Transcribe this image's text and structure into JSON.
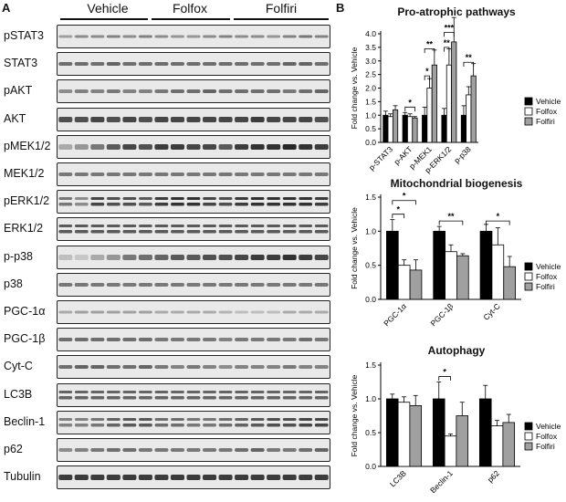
{
  "panels": {
    "a": "A",
    "b": "B"
  },
  "groups": [
    "Vehicle",
    "Folfox",
    "Folfiri"
  ],
  "blots": [
    {
      "label": "pSTAT3",
      "pattern": "weak",
      "intensity": [
        0.35,
        0.45,
        0.45,
        0.5,
        0.45,
        0.5,
        0.45,
        0.4,
        0.4,
        0.45,
        0.5,
        0.45,
        0.45,
        0.4,
        0.5,
        0.55,
        0.5
      ]
    },
    {
      "label": "STAT3",
      "pattern": "medium",
      "intensity": [
        0.6,
        0.6,
        0.6,
        0.65,
        0.6,
        0.6,
        0.6,
        0.6,
        0.6,
        0.6,
        0.6,
        0.6,
        0.6,
        0.6,
        0.65,
        0.65,
        0.6
      ]
    },
    {
      "label": "pAKT",
      "pattern": "medium",
      "intensity": [
        0.45,
        0.5,
        0.5,
        0.55,
        0.5,
        0.5,
        0.55,
        0.6,
        0.6,
        0.65,
        0.6,
        0.6,
        0.6,
        0.6,
        0.55,
        0.6,
        0.65
      ]
    },
    {
      "label": "AKT",
      "pattern": "strong",
      "intensity": [
        0.75,
        0.75,
        0.8,
        0.75,
        0.8,
        0.75,
        0.8,
        0.8,
        0.8,
        0.8,
        0.8,
        0.8,
        0.85,
        0.8,
        0.8,
        0.8,
        0.75
      ]
    },
    {
      "label": "pMEK1/2",
      "pattern": "strong",
      "intensity": [
        0.3,
        0.4,
        0.55,
        0.7,
        0.8,
        0.75,
        0.85,
        0.85,
        0.8,
        0.8,
        0.7,
        0.85,
        0.9,
        0.9,
        0.95,
        0.9,
        0.85
      ]
    },
    {
      "label": "MEK1/2",
      "pattern": "medium",
      "intensity": [
        0.55,
        0.55,
        0.55,
        0.55,
        0.55,
        0.55,
        0.55,
        0.55,
        0.55,
        0.55,
        0.55,
        0.55,
        0.55,
        0.55,
        0.55,
        0.55,
        0.55
      ]
    },
    {
      "label": "pERK1/2",
      "pattern": "double",
      "intensity": [
        0.55,
        0.45,
        0.8,
        0.75,
        0.75,
        0.7,
        0.85,
        0.9,
        0.9,
        0.8,
        0.75,
        0.85,
        0.9,
        0.9,
        0.9,
        0.9,
        0.85
      ]
    },
    {
      "label": "ERK1/2",
      "pattern": "double",
      "intensity": [
        0.7,
        0.7,
        0.7,
        0.7,
        0.7,
        0.7,
        0.7,
        0.7,
        0.7,
        0.7,
        0.7,
        0.7,
        0.7,
        0.7,
        0.7,
        0.7,
        0.7
      ]
    },
    {
      "label": "p-p38",
      "pattern": "strong",
      "intensity": [
        0.2,
        0.15,
        0.3,
        0.4,
        0.55,
        0.6,
        0.65,
        0.7,
        0.7,
        0.75,
        0.75,
        0.8,
        0.85,
        0.85,
        0.9,
        0.85,
        0.8
      ]
    },
    {
      "label": "p38",
      "pattern": "medium",
      "intensity": [
        0.55,
        0.55,
        0.55,
        0.55,
        0.55,
        0.55,
        0.55,
        0.55,
        0.55,
        0.55,
        0.55,
        0.55,
        0.55,
        0.55,
        0.55,
        0.55,
        0.55
      ]
    },
    {
      "label": "PGC-1α",
      "pattern": "weak",
      "intensity": [
        0.3,
        0.35,
        0.35,
        0.35,
        0.35,
        0.35,
        0.3,
        0.3,
        0.3,
        0.3,
        0.25,
        0.2,
        0.2,
        0.2,
        0.3,
        0.3,
        0.3
      ]
    },
    {
      "label": "PGC-1β",
      "pattern": "medium",
      "intensity": [
        0.6,
        0.6,
        0.6,
        0.6,
        0.6,
        0.6,
        0.55,
        0.55,
        0.55,
        0.55,
        0.5,
        0.55,
        0.55,
        0.55,
        0.55,
        0.6,
        0.55
      ]
    },
    {
      "label": "Cyt-C",
      "pattern": "medium",
      "intensity": [
        0.6,
        0.65,
        0.65,
        0.6,
        0.6,
        0.65,
        0.55,
        0.5,
        0.55,
        0.5,
        0.45,
        0.5,
        0.5,
        0.5,
        0.55,
        0.5,
        0.5
      ]
    },
    {
      "label": "LC3B",
      "pattern": "double",
      "intensity": [
        0.65,
        0.65,
        0.65,
        0.65,
        0.65,
        0.65,
        0.65,
        0.65,
        0.65,
        0.65,
        0.65,
        0.65,
        0.65,
        0.65,
        0.65,
        0.65,
        0.65
      ]
    },
    {
      "label": "Beclin-1",
      "pattern": "double",
      "intensity": [
        0.5,
        0.5,
        0.55,
        0.65,
        0.7,
        0.7,
        0.6,
        0.6,
        0.55,
        0.55,
        0.6,
        0.65,
        0.7,
        0.75,
        0.75,
        0.8,
        0.8
      ]
    },
    {
      "label": "p62",
      "pattern": "medium",
      "intensity": [
        0.45,
        0.5,
        0.55,
        0.6,
        0.6,
        0.55,
        0.55,
        0.55,
        0.55,
        0.55,
        0.55,
        0.6,
        0.65,
        0.55,
        0.55,
        0.6,
        0.65
      ]
    },
    {
      "label": "Tubulin",
      "pattern": "strong",
      "intensity": [
        0.85,
        0.85,
        0.85,
        0.85,
        0.85,
        0.85,
        0.85,
        0.85,
        0.85,
        0.85,
        0.85,
        0.85,
        0.85,
        0.85,
        0.85,
        0.85,
        0.85
      ]
    }
  ],
  "legend": [
    {
      "name": "Vehicle",
      "color": "#000000"
    },
    {
      "name": "Folfox",
      "color": "#ffffff"
    },
    {
      "name": "Folfiri",
      "color": "#a0a0a0"
    }
  ],
  "chart_data": [
    {
      "type": "bar",
      "title": "Pro-atrophic pathways",
      "ylabel": "Fold change vs. Vehicle",
      "ylim": [
        0,
        4
      ],
      "yticks": [
        "0.0",
        "0.5",
        "1.0",
        "1.5",
        "2.0",
        "2.5",
        "3.0",
        "3.5",
        "4.0"
      ],
      "categories": [
        "p-STAT3",
        "p-AKT",
        "p-MEK1",
        "p-ERK1/2",
        "p-p38"
      ],
      "series": [
        {
          "name": "Vehicle",
          "values": [
            1.0,
            1.0,
            1.0,
            1.0,
            1.0
          ],
          "errors": [
            0.15,
            0.1,
            0.3,
            0.25,
            0.35
          ]
        },
        {
          "name": "Folfox",
          "values": [
            0.95,
            0.95,
            2.0,
            2.85,
            1.75
          ],
          "errors": [
            0.1,
            0.1,
            0.35,
            0.6,
            0.3
          ]
        },
        {
          "name": "Folfiri",
          "values": [
            1.2,
            0.9,
            2.85,
            3.7,
            2.45
          ],
          "errors": [
            0.15,
            0.05,
            0.55,
            0.9,
            0.45
          ]
        }
      ],
      "significance": [
        {
          "category": 1,
          "pair": [
            0,
            2
          ],
          "level": 1.3,
          "label": "*"
        },
        {
          "category": 2,
          "pair": [
            0,
            1
          ],
          "level": 2.45,
          "label": "*"
        },
        {
          "category": 2,
          "pair": [
            0,
            2
          ],
          "level": 3.45,
          "label": "**"
        },
        {
          "category": 3,
          "pair": [
            0,
            1
          ],
          "level": 3.5,
          "label": "**"
        },
        {
          "category": 3,
          "pair": [
            0,
            2
          ],
          "level": 4.05,
          "label": "***"
        },
        {
          "category": 4,
          "pair": [
            0,
            2
          ],
          "level": 2.95,
          "label": "**"
        }
      ]
    },
    {
      "type": "bar",
      "title": "Mitochondrial biogenesis",
      "ylabel": "Fold change vs. Vehicle",
      "ylim": [
        0,
        1.5
      ],
      "yticks": [
        "0.0",
        "0.5",
        "1.0",
        "1.5"
      ],
      "categories": [
        "PGC-1α",
        "PGC-1β",
        "Cyt-C"
      ],
      "series": [
        {
          "name": "Vehicle",
          "values": [
            1.0,
            1.0,
            1.0
          ],
          "errors": [
            0.17,
            0.07,
            0.1
          ]
        },
        {
          "name": "Folfox",
          "values": [
            0.5,
            0.7,
            0.8
          ],
          "errors": [
            0.08,
            0.1,
            0.25
          ]
        },
        {
          "name": "Folfiri",
          "values": [
            0.43,
            0.64,
            0.48
          ],
          "errors": [
            0.15,
            0.03,
            0.15
          ]
        }
      ],
      "significance": [
        {
          "category": 0,
          "pair": [
            0,
            1
          ],
          "level": 1.25,
          "label": "*"
        },
        {
          "category": 0,
          "pair": [
            0,
            2
          ],
          "level": 1.45,
          "label": "*"
        },
        {
          "category": 1,
          "pair": [
            0,
            2
          ],
          "level": 1.15,
          "label": "**"
        },
        {
          "category": 2,
          "pair": [
            0,
            2
          ],
          "level": 1.15,
          "label": "*"
        }
      ]
    },
    {
      "type": "bar",
      "title": "Autophagy",
      "ylabel": "Fold change vs. Vehicle",
      "ylim": [
        0,
        1.5
      ],
      "yticks": [
        "0.0",
        "0.5",
        "1.0",
        "1.5"
      ],
      "categories": [
        "LC3B",
        "Beclin-1",
        "p62"
      ],
      "series": [
        {
          "name": "Vehicle",
          "values": [
            1.0,
            1.0,
            1.0
          ],
          "errors": [
            0.07,
            0.25,
            0.2
          ]
        },
        {
          "name": "Folfox",
          "values": [
            0.95,
            0.45,
            0.6
          ],
          "errors": [
            0.08,
            0.03,
            0.08
          ]
        },
        {
          "name": "Folfiri",
          "values": [
            0.9,
            0.75,
            0.65
          ],
          "errors": [
            0.15,
            0.2,
            0.12
          ]
        }
      ],
      "significance": [
        {
          "category": 1,
          "pair": [
            0,
            1
          ],
          "level": 1.33,
          "label": "*"
        }
      ]
    }
  ]
}
